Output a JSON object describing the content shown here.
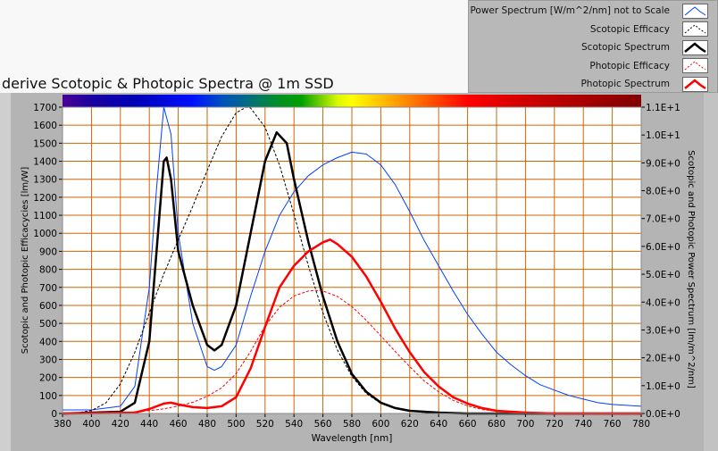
{
  "title": "derive Scotopic & Photopic Spectra @ 1m SSD",
  "legend": [
    {
      "label": "Power Spectrum [W/m^2/nm] not to Scale",
      "color": "#0040ff",
      "style": "solid-thin"
    },
    {
      "label": "Scotopic Efficacy",
      "color": "#000000",
      "style": "dashed"
    },
    {
      "label": "Scotopic Spectrum",
      "color": "#000000",
      "style": "solid-thick"
    },
    {
      "label": "Photopic Efficacy",
      "color": "#ff0000",
      "style": "dashed"
    },
    {
      "label": "Photopic Spectrum",
      "color": "#ff0000",
      "style": "solid-thick"
    }
  ],
  "chart_data": {
    "type": "line",
    "xlabel": "Wavelength [nm]",
    "ylabel": "Scotopic and Photopic Efficacycies [lm/W]",
    "y2label": "Scotopic and Photopic Power Spectrum [lm/m^2/nm]",
    "xlim": [
      380,
      780
    ],
    "ylim": [
      0,
      1700
    ],
    "y2lim": [
      0,
      11
    ],
    "grid": true,
    "grid_color": "#cc6600",
    "legend_position": "top-right",
    "xticks": [
      "380",
      "400",
      "420",
      "440",
      "460",
      "480",
      "500",
      "520",
      "540",
      "560",
      "580",
      "600",
      "620",
      "640",
      "660",
      "680",
      "700",
      "720",
      "740",
      "760",
      "780"
    ],
    "yticks": [
      "0",
      "100",
      "200",
      "300",
      "400",
      "500",
      "600",
      "700",
      "800",
      "900",
      "1000",
      "1100",
      "1200",
      "1300",
      "1400",
      "1500",
      "1600",
      "1700"
    ],
    "y2ticks": [
      "0.0E+0",
      "1.0E+0",
      "2.0E+0",
      "3.0E+0",
      "4.0E+0",
      "5.0E+0",
      "6.0E+0",
      "7.0E+0",
      "8.0E+0",
      "9.0E+0",
      "1.0E+1",
      "1.1E+1"
    ],
    "series": [
      {
        "name": "Power Spectrum [W/m^2/nm] not to Scale",
        "color": "#0040ff",
        "width": 1,
        "dash": false,
        "x": [
          380,
          400,
          420,
          430,
          440,
          445,
          450,
          455,
          460,
          470,
          480,
          485,
          490,
          500,
          510,
          520,
          530,
          540,
          550,
          560,
          570,
          580,
          590,
          600,
          610,
          620,
          630,
          640,
          650,
          660,
          670,
          680,
          690,
          700,
          710,
          720,
          730,
          740,
          750,
          760,
          780
        ],
        "y": [
          20,
          20,
          40,
          150,
          700,
          1250,
          1700,
          1550,
          1000,
          500,
          260,
          240,
          260,
          380,
          650,
          900,
          1100,
          1230,
          1320,
          1380,
          1420,
          1450,
          1440,
          1380,
          1270,
          1120,
          960,
          820,
          680,
          550,
          440,
          340,
          270,
          210,
          160,
          130,
          100,
          80,
          60,
          50,
          40
        ]
      },
      {
        "name": "Scotopic Efficacy",
        "color": "#000000",
        "width": 1,
        "dash": true,
        "x": [
          380,
          390,
          400,
          410,
          420,
          430,
          440,
          450,
          460,
          470,
          480,
          490,
          500,
          507,
          510,
          520,
          530,
          540,
          550,
          560,
          570,
          580,
          590,
          600,
          610,
          620,
          630,
          640,
          650,
          660,
          780
        ],
        "y": [
          1,
          4,
          16,
          59,
          164,
          340,
          558,
          774,
          964,
          1149,
          1348,
          1537,
          1669,
          1700,
          1695,
          1589,
          1379,
          1105,
          818,
          559,
          353,
          206,
          111,
          56,
          27,
          13,
          6,
          2.5,
          1,
          0,
          0
        ]
      },
      {
        "name": "Scotopic Spectrum",
        "color": "#000000",
        "width": 2.5,
        "dash": false,
        "x": [
          380,
          420,
          430,
          440,
          445,
          450,
          452,
          455,
          460,
          470,
          480,
          485,
          490,
          500,
          510,
          520,
          528,
          535,
          540,
          550,
          560,
          570,
          580,
          590,
          600,
          610,
          620,
          640,
          660,
          780
        ],
        "y": [
          0,
          10,
          60,
          400,
          900,
          1400,
          1420,
          1300,
          900,
          600,
          380,
          350,
          380,
          600,
          1000,
          1400,
          1560,
          1500,
          1300,
          950,
          650,
          400,
          220,
          120,
          60,
          30,
          15,
          5,
          0,
          0
        ]
      },
      {
        "name": "Photopic Efficacy",
        "color": "#ff0000",
        "width": 1,
        "dash": true,
        "x": [
          380,
          400,
          420,
          440,
          450,
          460,
          470,
          480,
          490,
          500,
          510,
          520,
          530,
          540,
          550,
          555,
          560,
          570,
          580,
          590,
          600,
          610,
          620,
          630,
          640,
          650,
          660,
          670,
          680,
          690,
          700,
          720,
          780
        ],
        "y": [
          0,
          0.3,
          3,
          16,
          26,
          41,
          62,
          95,
          142,
          221,
          344,
          485,
          589,
          652,
          680,
          683,
          680,
          650,
          594,
          517,
          431,
          344,
          260,
          181,
          120,
          73,
          42,
          22,
          12,
          6,
          3,
          1,
          0
        ]
      },
      {
        "name": "Photopic Spectrum",
        "color": "#ff0000",
        "width": 2.5,
        "dash": false,
        "x": [
          380,
          430,
          440,
          450,
          455,
          460,
          470,
          480,
          490,
          500,
          510,
          520,
          530,
          540,
          550,
          560,
          565,
          570,
          580,
          590,
          600,
          610,
          620,
          630,
          640,
          650,
          660,
          670,
          680,
          700,
          720,
          780
        ],
        "y": [
          0,
          5,
          25,
          55,
          60,
          50,
          35,
          30,
          40,
          90,
          250,
          480,
          700,
          820,
          900,
          950,
          965,
          940,
          870,
          760,
          620,
          470,
          340,
          230,
          150,
          90,
          55,
          30,
          15,
          5,
          0,
          0
        ]
      }
    ]
  }
}
